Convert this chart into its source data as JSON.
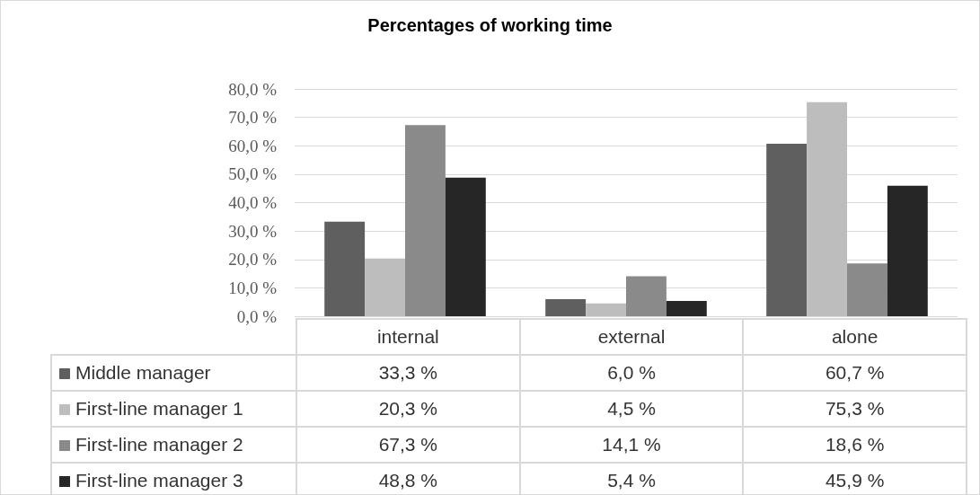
{
  "chart_data": {
    "type": "bar",
    "title": "Percentages of working time",
    "categories": [
      "internal",
      "external",
      "alone"
    ],
    "series": [
      {
        "name": "Middle manager",
        "color": "#5f5f5f",
        "values": [
          33.3,
          6.0,
          60.7
        ],
        "value_labels": [
          "33,3 %",
          "6,0 %",
          "60,7 %"
        ]
      },
      {
        "name": "First-line manager 1",
        "color": "#bdbdbd",
        "values": [
          20.3,
          4.5,
          75.3
        ],
        "value_labels": [
          "20,3 %",
          "4,5 %",
          "75,3 %"
        ]
      },
      {
        "name": "First-line manager 2",
        "color": "#8a8a8a",
        "values": [
          67.3,
          14.1,
          18.6
        ],
        "value_labels": [
          "67,3 %",
          "14,1 %",
          "18,6 %"
        ]
      },
      {
        "name": "First-line manager 3",
        "color": "#262626",
        "values": [
          48.8,
          5.4,
          45.9
        ],
        "value_labels": [
          "48,8 %",
          "5,4 %",
          "45,9 %"
        ]
      }
    ],
    "ylim": [
      0,
      80
    ],
    "yticks": [
      {
        "value": 0,
        "label": "0,0 %"
      },
      {
        "value": 10,
        "label": "10,0 %"
      },
      {
        "value": 20,
        "label": "20,0 %"
      },
      {
        "value": 30,
        "label": "30,0 %"
      },
      {
        "value": 40,
        "label": "40,0 %"
      },
      {
        "value": 50,
        "label": "50,0 %"
      },
      {
        "value": 60,
        "label": "60,0 %"
      },
      {
        "value": 70,
        "label": "70,0 %"
      },
      {
        "value": 80,
        "label": "80,0 %"
      }
    ],
    "grid": "y",
    "legend": "bottom left"
  }
}
